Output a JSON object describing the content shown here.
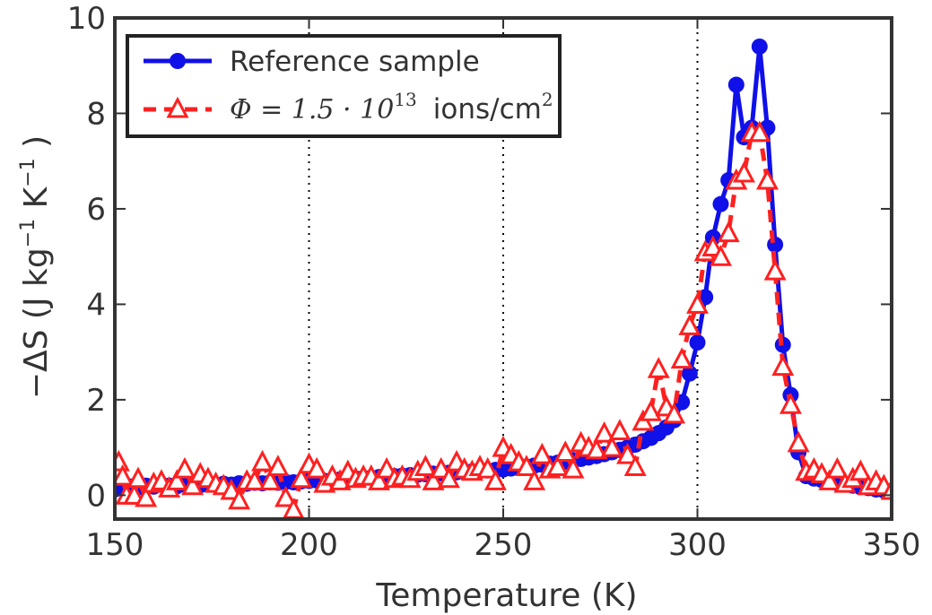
{
  "chart_data": {
    "type": "line",
    "xlabel": "Temperature (K)",
    "ylabel_main": "−ΔS (J kg",
    "ylabel_exp1": "−1",
    "ylabel_mid": "  K",
    "ylabel_exp2": "−1",
    "ylabel_end": " )",
    "xlim": [
      150,
      350
    ],
    "ylim": [
      -0.5,
      10
    ],
    "xticks": [
      150,
      200,
      250,
      300,
      350
    ],
    "yticks": [
      0,
      2,
      4,
      6,
      8,
      10
    ],
    "grid": {
      "x_dotted_at": [
        200,
        250,
        300
      ]
    },
    "legend": {
      "placement": "top-left",
      "entries": [
        {
          "label": "Reference sample"
        },
        {
          "label_math": "Φ = 1.5 · 10",
          "label_sup": "13",
          "label_units": "ions/cm",
          "label_units_sup": "2"
        }
      ]
    },
    "series": [
      {
        "marker": "circle",
        "line": "solid",
        "color": "#1010e8",
        "x": [
          150,
          152,
          154,
          156,
          158,
          160,
          162,
          164,
          166,
          168,
          170,
          172,
          174,
          176,
          178,
          180,
          182,
          184,
          186,
          188,
          190,
          192,
          194,
          196,
          198,
          200,
          202,
          204,
          206,
          208,
          210,
          212,
          214,
          216,
          218,
          220,
          222,
          224,
          226,
          228,
          230,
          232,
          234,
          236,
          238,
          240,
          242,
          244,
          246,
          248,
          250,
          252,
          254,
          256,
          258,
          260,
          262,
          264,
          266,
          268,
          270,
          272,
          274,
          276,
          278,
          280,
          282,
          284,
          286,
          288,
          290,
          292,
          294,
          296,
          298,
          300,
          302,
          304,
          306,
          308,
          310,
          312,
          314,
          316,
          318,
          320,
          322,
          324,
          326,
          328,
          330,
          332,
          334,
          336,
          338,
          340,
          342,
          344,
          346,
          348,
          350
        ],
        "y": [
          0.12,
          0.15,
          0.18,
          0.16,
          0.2,
          0.18,
          0.22,
          0.2,
          0.19,
          0.22,
          0.2,
          0.21,
          0.23,
          0.22,
          0.24,
          0.22,
          0.25,
          0.24,
          0.26,
          0.25,
          0.27,
          0.26,
          0.28,
          0.27,
          0.29,
          0.3,
          0.31,
          0.3,
          0.32,
          0.33,
          0.34,
          0.35,
          0.36,
          0.37,
          0.38,
          0.39,
          0.4,
          0.41,
          0.42,
          0.43,
          0.44,
          0.45,
          0.46,
          0.47,
          0.48,
          0.49,
          0.5,
          0.51,
          0.52,
          0.53,
          0.54,
          0.56,
          0.58,
          0.6,
          0.62,
          0.64,
          0.66,
          0.68,
          0.7,
          0.73,
          0.76,
          0.79,
          0.82,
          0.86,
          0.9,
          0.95,
          1.0,
          1.06,
          1.13,
          1.2,
          1.3,
          1.42,
          1.57,
          1.95,
          2.55,
          3.2,
          4.15,
          5.4,
          6.1,
          6.6,
          8.6,
          7.5,
          7.7,
          9.4,
          7.7,
          5.25,
          3.15,
          2.1,
          0.9,
          0.4,
          0.35,
          0.32,
          0.28,
          0.25,
          0.22,
          0.2,
          0.17,
          0.15,
          0.12,
          0.1,
          0.08
        ]
      },
      {
        "marker": "triangle",
        "line": "dashed",
        "color": "#ff2020",
        "x": [
          151,
          152,
          153,
          155,
          156,
          158,
          160,
          162,
          164,
          166,
          168,
          170,
          172,
          174,
          176,
          178,
          180,
          182,
          184,
          186,
          188,
          190,
          192,
          194,
          196,
          198,
          200,
          202,
          204,
          206,
          208,
          210,
          212,
          214,
          216,
          218,
          220,
          222,
          224,
          226,
          228,
          230,
          232,
          234,
          236,
          238,
          240,
          242,
          244,
          246,
          248,
          250,
          252,
          254,
          256,
          258,
          260,
          262,
          264,
          266,
          268,
          270,
          272,
          274,
          276,
          278,
          280,
          282,
          284,
          286,
          288,
          290,
          292,
          294,
          296,
          298,
          300,
          302,
          304,
          306,
          308,
          310,
          312,
          314,
          316,
          318,
          320,
          322,
          324,
          326,
          328,
          330,
          332,
          334,
          336,
          338,
          340,
          342,
          344,
          346,
          348,
          350
        ],
        "y": [
          0.7,
          0.4,
          0.0,
          0.0,
          0.35,
          -0.05,
          0.25,
          0.3,
          0.15,
          0.3,
          0.55,
          0.2,
          0.45,
          0.35,
          0.25,
          0.2,
          0.1,
          -0.1,
          0.3,
          0.3,
          0.7,
          0.3,
          0.6,
          -0.05,
          -0.3,
          0.35,
          0.65,
          0.55,
          0.25,
          0.4,
          0.3,
          0.5,
          0.35,
          0.4,
          0.4,
          0.3,
          0.55,
          0.35,
          0.4,
          0.35,
          0.5,
          0.6,
          0.3,
          0.55,
          0.35,
          0.7,
          0.55,
          0.5,
          0.6,
          0.55,
          0.3,
          1.0,
          0.85,
          0.7,
          0.6,
          0.3,
          0.85,
          0.55,
          0.6,
          0.9,
          0.55,
          1.1,
          1.0,
          0.95,
          1.3,
          1.0,
          1.35,
          0.85,
          0.6,
          1.55,
          1.75,
          2.65,
          1.85,
          1.7,
          2.85,
          3.55,
          4.0,
          5.1,
          5.2,
          5.0,
          5.5,
          6.6,
          6.75,
          7.6,
          7.6,
          6.6,
          4.7,
          2.7,
          1.9,
          1.1,
          0.5,
          0.55,
          0.45,
          0.3,
          0.55,
          0.25,
          0.35,
          0.5,
          0.2,
          0.3,
          0.2,
          0.1
        ]
      }
    ]
  }
}
